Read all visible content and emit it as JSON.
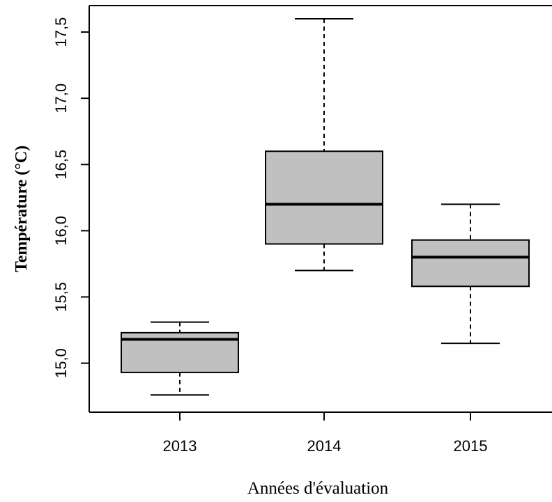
{
  "chart_data": {
    "type": "boxplot",
    "title": "",
    "xlabel": "Années d'évaluation",
    "ylabel": "Température  (°C)",
    "ylim": [
      14.63,
      17.7
    ],
    "grid": false,
    "y_ticks": [
      15.0,
      15.5,
      16.0,
      16.5,
      17.0,
      17.5
    ],
    "y_tick_labels": [
      "15,0",
      "15,5",
      "16,0",
      "16,5",
      "17,0",
      "17,5"
    ],
    "categories": [
      "2013",
      "2014",
      "2015"
    ],
    "boxes": [
      {
        "category": "2013",
        "whisker_low": 14.76,
        "q1": 14.93,
        "median": 15.18,
        "q3": 15.23,
        "whisker_high": 15.31
      },
      {
        "category": "2014",
        "whisker_low": 15.7,
        "q1": 15.9,
        "median": 16.2,
        "q3": 16.6,
        "whisker_high": 17.6
      },
      {
        "category": "2015",
        "whisker_low": 15.15,
        "q1": 15.58,
        "median": 15.8,
        "q3": 15.93,
        "whisker_high": 16.2
      }
    ],
    "colors": {
      "box_fill": "#c0c0c0",
      "stroke": "#000000",
      "median": "#000000"
    }
  }
}
